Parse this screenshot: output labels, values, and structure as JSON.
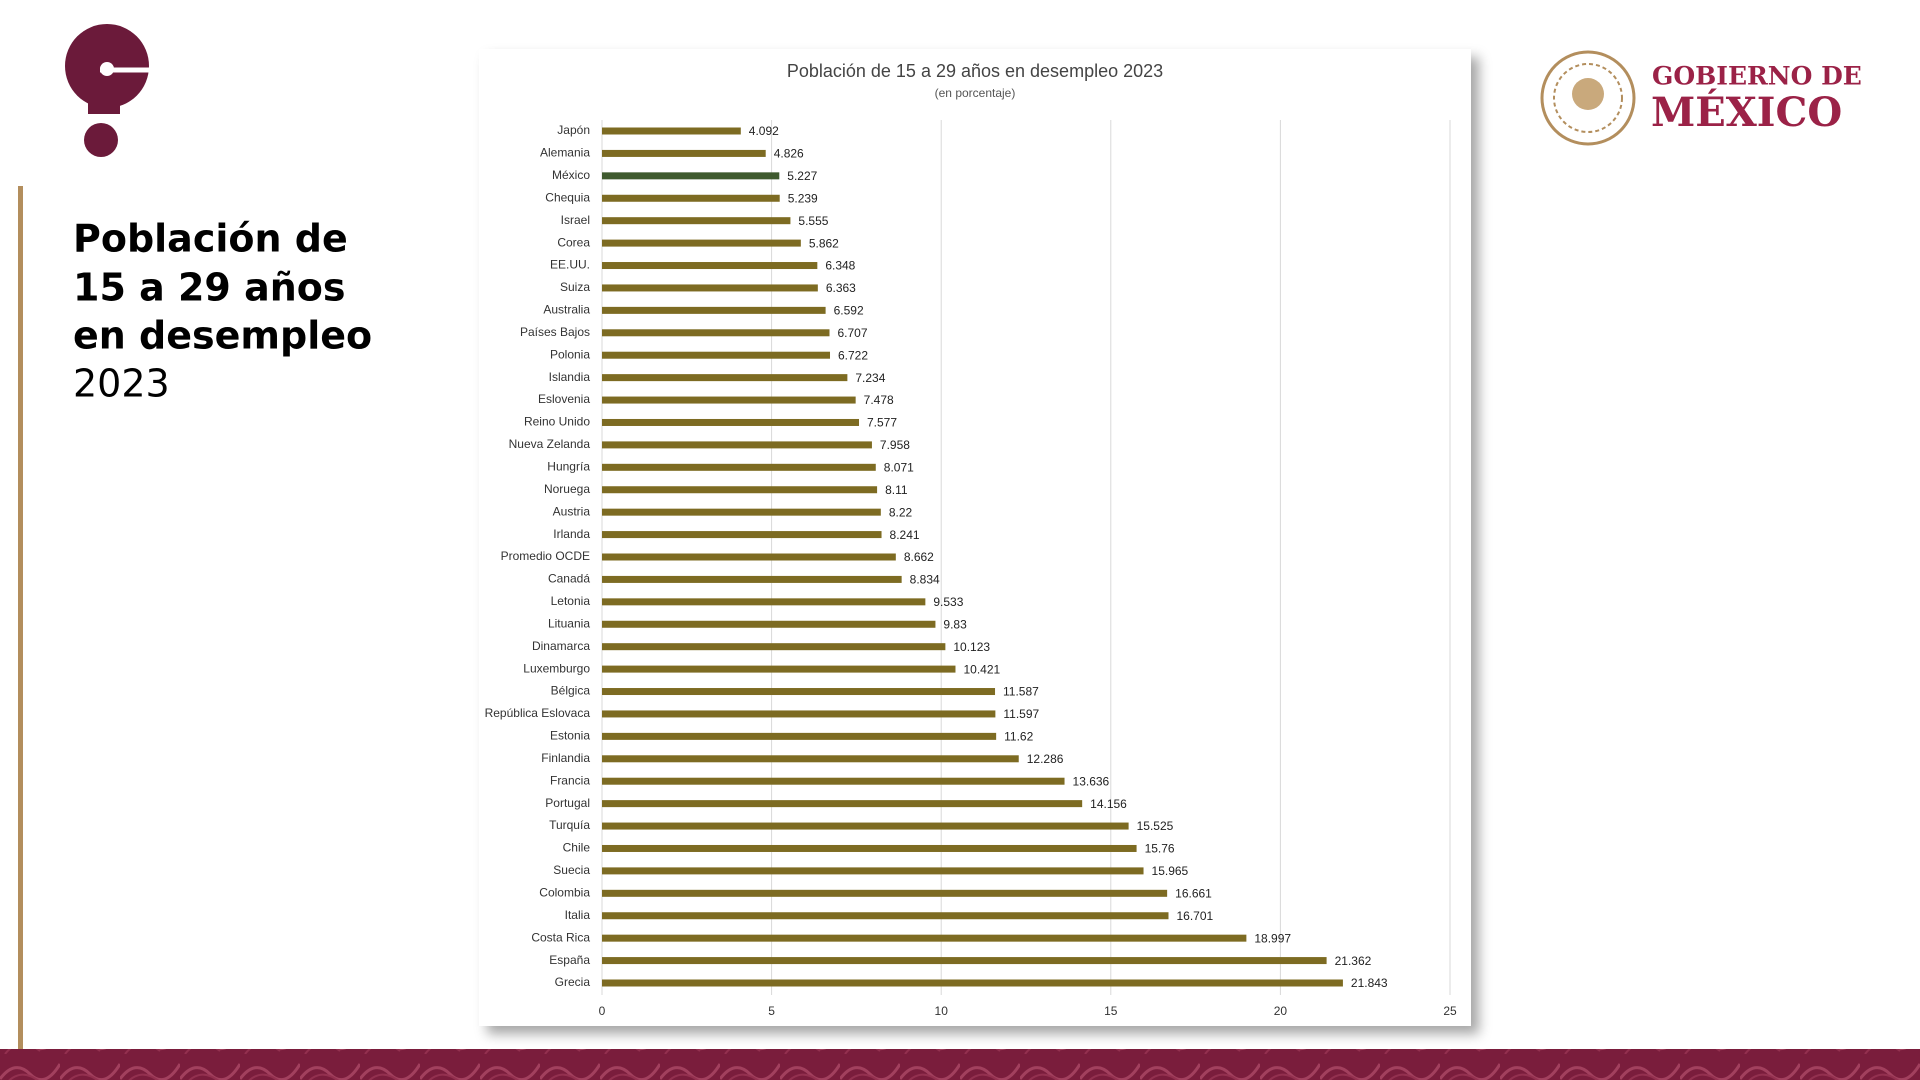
{
  "header": {
    "title_lines": [
      "Población de",
      "15 a 29 años",
      "en desempleo"
    ],
    "year": "2023"
  },
  "logo": {
    "line1": "GOBIERNO DE",
    "line2": "MÉXICO"
  },
  "chart_data": {
    "type": "hbar",
    "title": "Población de 15 a 29 años en desempleo 2023",
    "subtitle": "(en porcentaje)",
    "categories": [
      "Japón",
      "Alemania",
      "México",
      "Chequia",
      "Israel",
      "Corea",
      "EE.UU.",
      "Suiza",
      "Australia",
      "Países Bajos",
      "Polonia",
      "Islandia",
      "Eslovenia",
      "Reino Unido",
      "Nueva Zelanda",
      "Hungría",
      "Noruega",
      "Austria",
      "Irlanda",
      "Promedio OCDE",
      "Canadá",
      "Letonia",
      "Lituania",
      "Dinamarca",
      "Luxemburgo",
      "Bélgica",
      "República Eslovaca",
      "Estonia",
      "Finlandia",
      "Francia",
      "Portugal",
      "Turquía",
      "Chile",
      "Suecia",
      "Colombia",
      "Italia",
      "Costa Rica",
      "España",
      "Grecia"
    ],
    "values": [
      4.092,
      4.826,
      5.227,
      5.239,
      5.555,
      5.862,
      6.348,
      6.363,
      6.592,
      6.707,
      6.722,
      7.234,
      7.478,
      7.577,
      7.958,
      8.071,
      8.11,
      8.22,
      8.241,
      8.662,
      8.834,
      9.533,
      9.83,
      10.123,
      10.421,
      11.587,
      11.597,
      11.62,
      12.286,
      13.636,
      14.156,
      15.525,
      15.76,
      15.965,
      16.661,
      16.701,
      18.997,
      21.362,
      21.843
    ],
    "colors": [
      "#7d6b22",
      "#7d6b22",
      "#3f5a2e",
      "#7d6b22",
      "#7d6b22",
      "#7d6b22",
      "#7d6b22",
      "#7d6b22",
      "#7d6b22",
      "#7d6b22",
      "#7d6b22",
      "#7d6b22",
      "#7d6b22",
      "#7d6b22",
      "#7d6b22",
      "#7d6b22",
      "#7d6b22",
      "#7d6b22",
      "#7d6b22",
      "#7d6b22",
      "#7d6b22",
      "#7d6b22",
      "#7d6b22",
      "#7d6b22",
      "#7d6b22",
      "#7d6b22",
      "#7d6b22",
      "#7d6b22",
      "#7d6b22",
      "#7d6b22",
      "#7d6b22",
      "#7d6b22",
      "#7d6b22",
      "#7d6b22",
      "#7d6b22",
      "#7d6b22",
      "#7d6b22",
      "#7d6b22",
      "#7d6b22"
    ],
    "xlim": [
      0,
      25
    ],
    "xticks": [
      0,
      5,
      10,
      15,
      20,
      25
    ],
    "grid": true
  }
}
